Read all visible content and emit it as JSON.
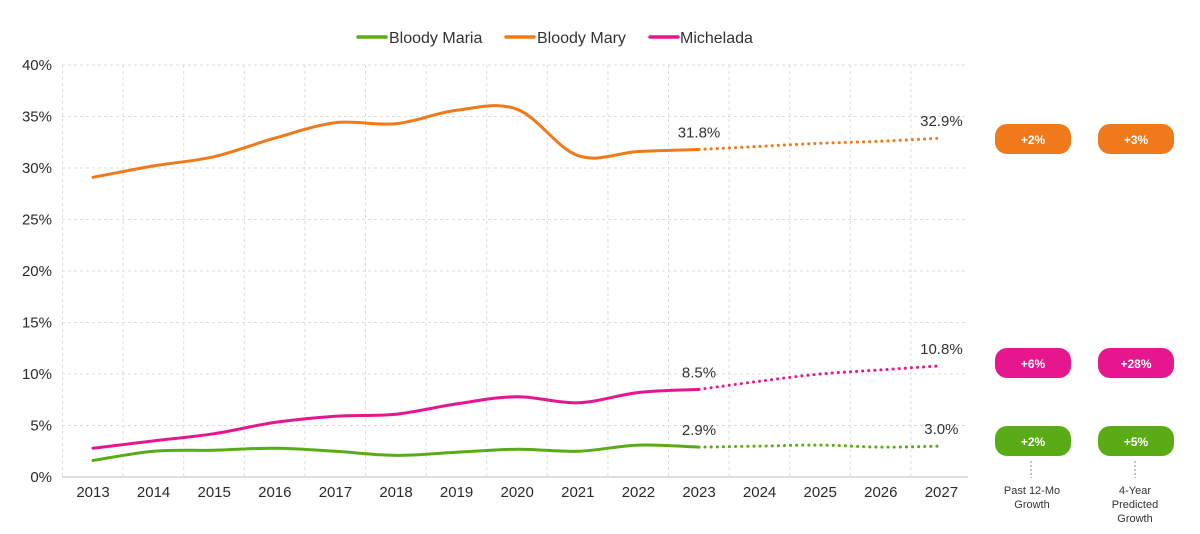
{
  "colors": {
    "bloody_maria": "#5aac17",
    "bloody_mary": "#f07a1a",
    "michelada": "#e6178e",
    "grid": "#dcdcdc"
  },
  "chart_data": {
    "type": "line",
    "title": "",
    "xlabel": "",
    "ylabel": "",
    "x": [
      2013,
      2014,
      2015,
      2016,
      2017,
      2018,
      2019,
      2020,
      2021,
      2022,
      2023,
      2024,
      2025,
      2026,
      2027
    ],
    "x_tick_labels": [
      "2013",
      "2014",
      "2015",
      "2016",
      "2017",
      "2018",
      "2019",
      "2020",
      "2021",
      "2022",
      "2023",
      "2024",
      "2025",
      "2026",
      "2027"
    ],
    "ylim": [
      0,
      40
    ],
    "y_ticks": [
      0,
      5,
      10,
      15,
      20,
      25,
      30,
      35,
      40
    ],
    "y_tick_labels": [
      "0%",
      "5%",
      "10%",
      "15%",
      "20%",
      "25%",
      "30%",
      "35%",
      "40%"
    ],
    "grid": true,
    "legend_position": "top-center",
    "actual_end_year": 2023,
    "series": [
      {
        "key": "bloody_maria",
        "name": "Bloody Maria",
        "color": "#5aac17",
        "actual": [
          1.6,
          2.5,
          2.6,
          2.8,
          2.5,
          2.1,
          2.4,
          2.7,
          2.5,
          3.1,
          2.9
        ],
        "forecast": [
          2.9,
          3.0,
          3.1,
          2.9,
          3.0
        ],
        "labels": [
          {
            "x": 2023,
            "y": 2.9,
            "text": "2.9%"
          },
          {
            "x": 2027,
            "y": 3.0,
            "text": "3.0%"
          }
        ]
      },
      {
        "key": "bloody_mary",
        "name": "Bloody Mary",
        "color": "#f07a1a",
        "actual": [
          29.1,
          30.2,
          31.1,
          32.9,
          34.4,
          34.3,
          35.6,
          35.7,
          31.2,
          31.6,
          31.8
        ],
        "forecast": [
          31.8,
          32.1,
          32.4,
          32.6,
          32.9
        ],
        "labels": [
          {
            "x": 2023,
            "y": 31.8,
            "text": "31.8%"
          },
          {
            "x": 2027,
            "y": 32.9,
            "text": "32.9%"
          }
        ]
      },
      {
        "key": "michelada",
        "name": "Michelada",
        "color": "#e6178e",
        "actual": [
          2.8,
          3.5,
          4.2,
          5.3,
          5.9,
          6.1,
          7.1,
          7.8,
          7.2,
          8.2,
          8.5
        ],
        "forecast": [
          8.5,
          9.3,
          10.0,
          10.4,
          10.8
        ],
        "labels": [
          {
            "x": 2023,
            "y": 8.5,
            "text": "8.5%"
          },
          {
            "x": 2027,
            "y": 10.8,
            "text": "10.8%"
          }
        ]
      }
    ]
  },
  "growth_panel": {
    "col1_label_line1": "Past 12-Mo",
    "col1_label_line2": "Growth",
    "col2_label_line1": "4-Year",
    "col2_label_line2": "Predicted",
    "col2_label_line3": "Growth",
    "rows": [
      {
        "series": "Bloody Mary",
        "color": "#f07a1a",
        "past": "+2%",
        "predicted": "+3%"
      },
      {
        "series": "Michelada",
        "color": "#e6178e",
        "past": "+6%",
        "predicted": "+28%"
      },
      {
        "series": "Bloody Maria",
        "color": "#5aac17",
        "past": "+2%",
        "predicted": "+5%"
      }
    ]
  }
}
